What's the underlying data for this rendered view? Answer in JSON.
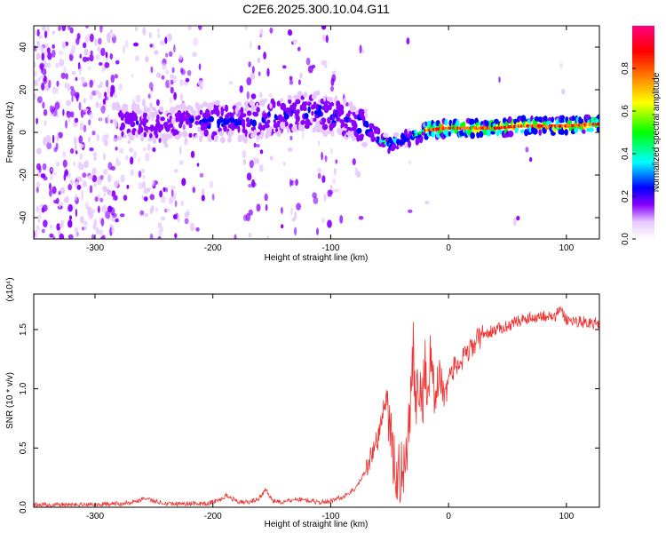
{
  "figure_title": "C2E6.2025.300.10.04.G11",
  "chart_data": [
    {
      "type": "heatmap",
      "name": "spectrogram",
      "title": "C2E6.2025.300.10.04.G11",
      "xlabel": "Height of straight line (km)",
      "ylabel": "Frequency (Hz)",
      "xlim": [
        -352,
        128
      ],
      "ylim": [
        -50,
        50
      ],
      "x_ticks": [
        -300,
        -200,
        -100,
        0,
        100
      ],
      "x_tick_labels": [
        "-300",
        "-200",
        "-100",
        "0",
        "100"
      ],
      "y_ticks": [
        -40,
        -20,
        0,
        20,
        40
      ],
      "y_tick_labels": [
        "-40",
        "-20",
        "0",
        "20",
        "40"
      ],
      "colorbar": {
        "label": "Normalized spectral amplitude",
        "range": [
          0.0,
          1.0
        ],
        "ticks": [
          0.0,
          0.2,
          0.4,
          0.6,
          0.8
        ],
        "tick_labels": [
          "0.0",
          "0.2",
          "0.4",
          "0.6",
          "0.8"
        ],
        "colors": [
          "#ffffff",
          "#e6c8ff",
          "#8a00ff",
          "#0000ff",
          "#00ffff",
          "#00ff00",
          "#ffff00",
          "#ff8000",
          "#ff0000",
          "#ff0080"
        ]
      },
      "ridge": {
        "x": [
          -270,
          -250,
          -230,
          -210,
          -190,
          -170,
          -150,
          -130,
          -110,
          -90,
          -75,
          -60,
          -50,
          -40,
          -30,
          -20,
          0,
          20,
          40,
          60,
          80,
          100,
          128
        ],
        "y": [
          4,
          4,
          4,
          5,
          5,
          5,
          7,
          9,
          10,
          7,
          4,
          -2,
          -6,
          -3,
          -2,
          1,
          2,
          2,
          2,
          3,
          3,
          3,
          4
        ]
      }
    },
    {
      "type": "line",
      "name": "snr",
      "xlabel": "Height of straight line (km)",
      "ylabel": "SNR (10 * v/v)",
      "y_multiplier": "(x10⁴)",
      "xlim": [
        -352,
        128
      ],
      "ylim": [
        0,
        1.8
      ],
      "x_ticks": [
        -300,
        -200,
        -100,
        0,
        100
      ],
      "x_tick_labels": [
        "-300",
        "-200",
        "-100",
        "0",
        "100"
      ],
      "y_ticks": [
        0.0,
        0.5,
        1.0,
        1.5
      ],
      "y_tick_labels": [
        "0.0",
        "0.5",
        "1.0",
        "1.5"
      ],
      "series": [
        {
          "name": "SNR",
          "color": "#ee3333",
          "x": [
            -352,
            -330,
            -300,
            -280,
            -265,
            -258,
            -250,
            -235,
            -220,
            -205,
            -195,
            -188,
            -180,
            -170,
            -160,
            -155,
            -150,
            -140,
            -130,
            -120,
            -110,
            -100,
            -95,
            -90,
            -85,
            -80,
            -75,
            -70,
            -65,
            -60,
            -55,
            -52,
            -48,
            -45,
            -42,
            -38,
            -35,
            -32,
            -30,
            -28,
            -25,
            -22,
            -20,
            -17,
            -15,
            -12,
            -10,
            -7,
            -5,
            -2,
            0,
            5,
            10,
            15,
            20,
            25,
            30,
            40,
            50,
            60,
            70,
            80,
            90,
            95,
            100,
            110,
            120,
            128
          ],
          "y": [
            0.02,
            0.02,
            0.02,
            0.03,
            0.05,
            0.08,
            0.05,
            0.03,
            0.03,
            0.03,
            0.06,
            0.1,
            0.05,
            0.04,
            0.08,
            0.15,
            0.06,
            0.04,
            0.07,
            0.06,
            0.04,
            0.05,
            0.08,
            0.08,
            0.12,
            0.15,
            0.22,
            0.32,
            0.45,
            0.58,
            0.82,
            0.95,
            0.45,
            0.32,
            0.25,
            0.38,
            0.55,
            0.98,
            1.38,
            0.75,
            1.1,
            0.85,
            1.25,
            0.95,
            1.35,
            0.9,
            1.0,
            1.15,
            0.95,
            1.05,
            1.1,
            1.18,
            1.22,
            1.28,
            1.35,
            1.42,
            1.46,
            1.5,
            1.53,
            1.58,
            1.6,
            1.62,
            1.6,
            1.68,
            1.58,
            1.57,
            1.56,
            1.55
          ]
        }
      ]
    }
  ]
}
